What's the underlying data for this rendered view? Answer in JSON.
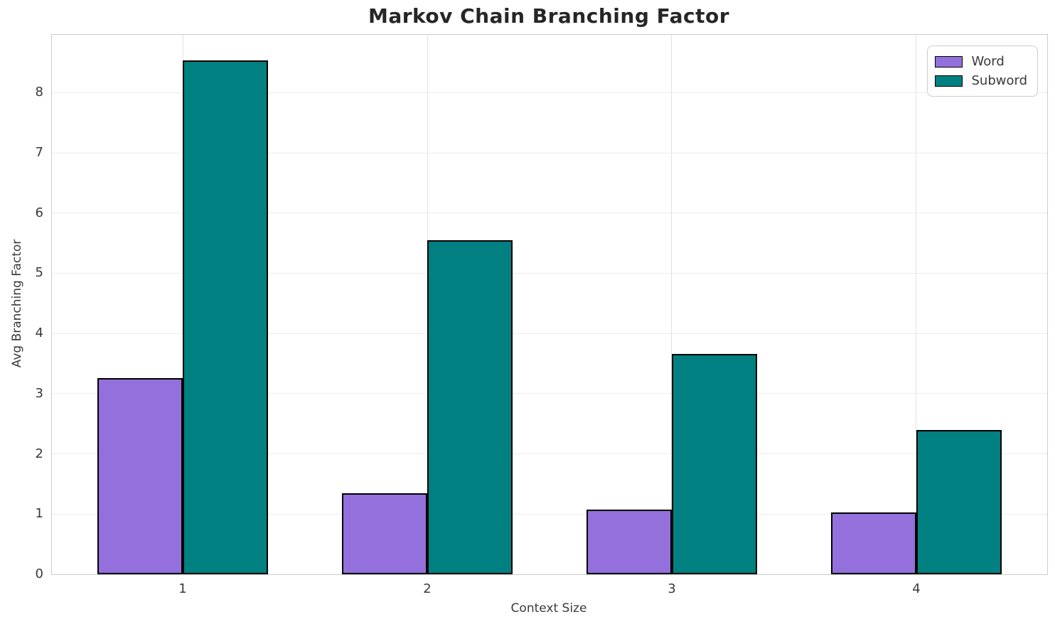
{
  "chart_data": {
    "type": "bar",
    "title": "Markov Chain Branching Factor",
    "xlabel": "Context Size",
    "ylabel": "Avg Branching Factor",
    "categories": [
      "1",
      "2",
      "3",
      "4"
    ],
    "series": [
      {
        "name": "Word",
        "color": "#9370DB",
        "values": [
          3.26,
          1.35,
          1.08,
          1.03
        ]
      },
      {
        "name": "Subword",
        "color": "#008080",
        "values": [
          8.53,
          5.55,
          3.66,
          2.4
        ]
      }
    ],
    "yticks": [
      0,
      1,
      2,
      3,
      4,
      5,
      6,
      7,
      8
    ],
    "ylim": [
      0,
      8.96
    ],
    "xlim": [
      0.465,
      4.535
    ],
    "bar_width": 0.35,
    "bar_edge_color": "#000000",
    "grid": true,
    "legend_position": "upper right",
    "legend_labels": [
      "Word",
      "Subword"
    ]
  }
}
